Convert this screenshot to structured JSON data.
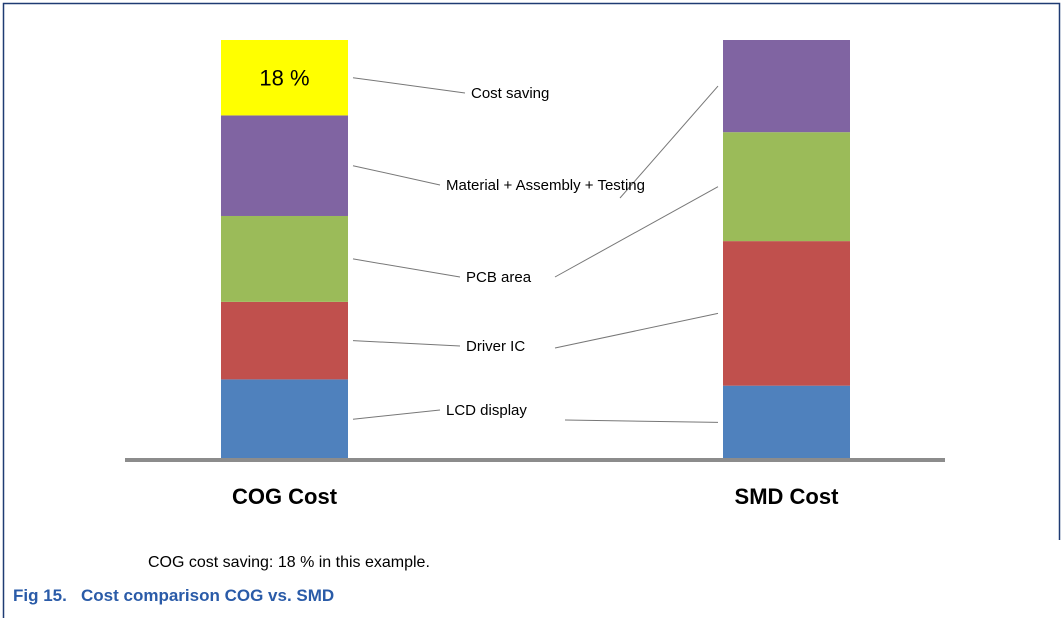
{
  "chart_data": {
    "type": "stacked_bar",
    "categories": [
      "COG Cost",
      "SMD Cost"
    ],
    "series": [
      {
        "name": "LCD display",
        "color": "#4f81bd",
        "values": [
          19,
          17.5
        ]
      },
      {
        "name": "Driver IC",
        "color": "#c0504d",
        "values": [
          18.5,
          34.5
        ]
      },
      {
        "name": "PCB area",
        "color": "#9bbb59",
        "values": [
          20.5,
          26
        ]
      },
      {
        "name": "Material + Assembly + Testing",
        "color": "#8064a2",
        "values": [
          24,
          22
        ]
      },
      {
        "name": "Cost saving",
        "color": "#ffff00",
        "values": [
          18,
          null
        ],
        "value_labels": [
          "18 %",
          null
        ]
      }
    ],
    "caption": "COG cost saving: 18 % in this example.",
    "figure_title": "Fig 15.   Cost comparison COG vs. SMD"
  }
}
